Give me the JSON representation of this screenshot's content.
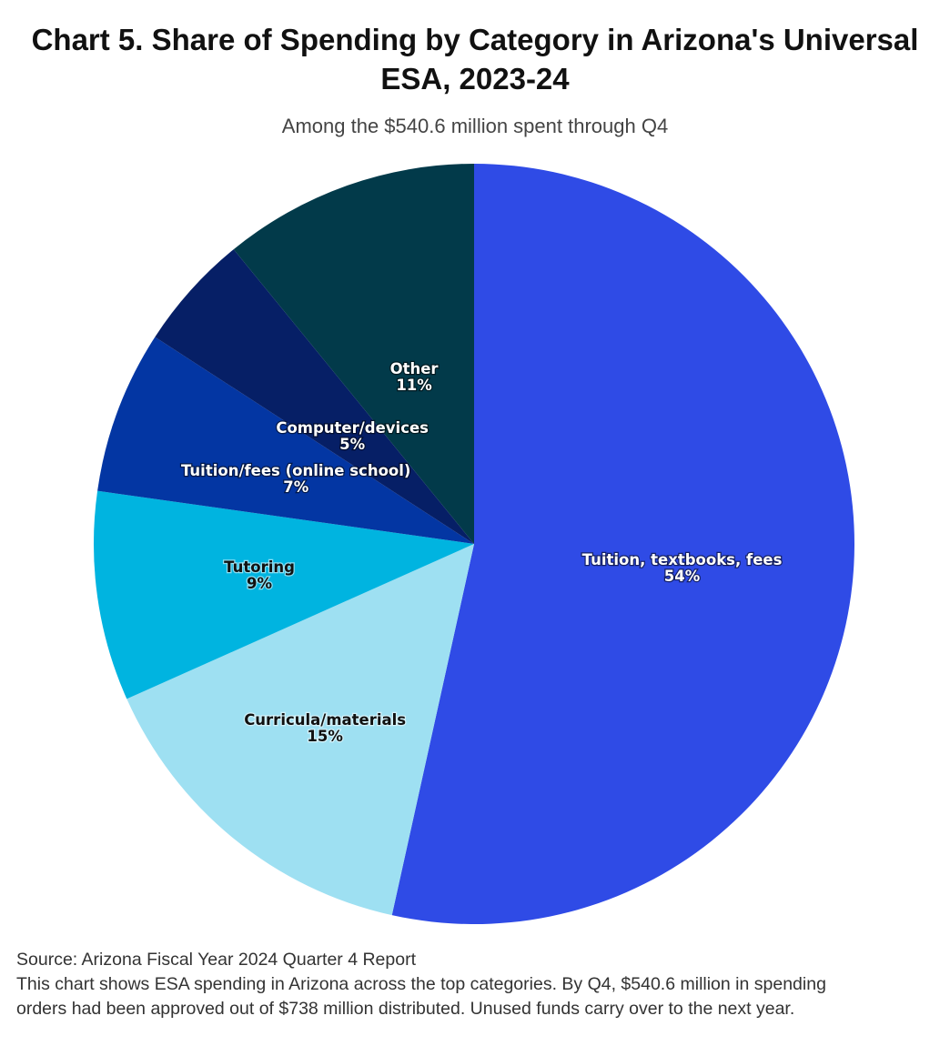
{
  "chart_data": {
    "type": "pie",
    "title": "Chart 5. Share of Spending by Category in Arizona's Universal ESA, 2023-24",
    "subtitle": "Among the $540.6 million spent through Q4",
    "slices": [
      {
        "label": "Tuition, textbooks, fees",
        "value": 54,
        "value_label": "54%",
        "color": "#2f4be6",
        "text_color": "#ffffff"
      },
      {
        "label": "Curricula/materials",
        "value": 15,
        "value_label": "15%",
        "color": "#9ee0f2",
        "text_color": "#111111"
      },
      {
        "label": "Tutoring",
        "value": 9,
        "value_label": "9%",
        "color": "#00b4e0",
        "text_color": "#111111"
      },
      {
        "label": "Tuition/fees (online school)",
        "value": 7,
        "value_label": "7%",
        "color": "#0336a3",
        "text_color": "#ffffff"
      },
      {
        "label": "Computer/devices",
        "value": 5,
        "value_label": "5%",
        "color": "#061f66",
        "text_color": "#ffffff"
      },
      {
        "label": "Other",
        "value": 11,
        "value_label": "11%",
        "color": "#023a4a",
        "text_color": "#ffffff"
      }
    ],
    "start": "12 o'clock",
    "direction": "clockwise",
    "legend": "none"
  },
  "footer": {
    "source": "Source: Arizona Fiscal Year 2024 Quarter 4 Report",
    "note_line1": "This chart shows ESA spending in Arizona across the top categories. By Q4, $540.6 million in spending",
    "note_line2": "orders had been approved out of $738 million distributed. Unused funds carry over to the next year."
  }
}
